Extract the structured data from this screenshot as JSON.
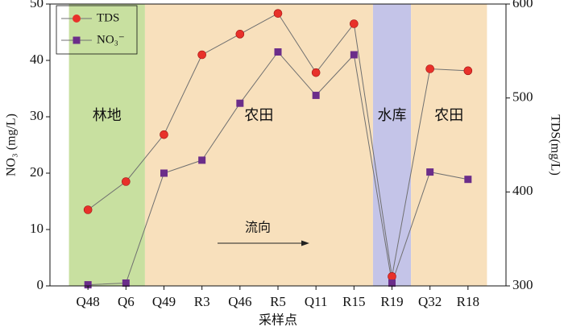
{
  "chart_data": {
    "type": "line",
    "x_label": "采样点",
    "y_label": "NO₃ (mg/L)",
    "y2_label": "TDS(mg/L)",
    "annotation": "流向",
    "categories": [
      "Q48",
      "Q6",
      "Q49",
      "R3",
      "Q46",
      "R5",
      "Q11",
      "R15",
      "R19",
      "Q32",
      "R18"
    ],
    "series": [
      {
        "name": "TDS",
        "color": "#e8312a",
        "marker": "circle",
        "axis": "y2",
        "values": [
          381,
          411,
          461,
          546,
          568,
          590,
          527,
          579,
          310,
          531,
          529
        ]
      },
      {
        "name": "NO₃⁻",
        "color": "#6b2d8a",
        "marker": "square",
        "values": [
          0.2,
          0.5,
          20,
          22.3,
          32.4,
          41.5,
          33.8,
          41,
          0.5,
          20.2,
          18.9
        ]
      }
    ],
    "regions": [
      {
        "label": "林地",
        "color": "#c8e0a0",
        "first": "Q48",
        "last": "Q6"
      },
      {
        "label": "农田",
        "color": "#f8e0bc",
        "first": "Q49",
        "last": "R15"
      },
      {
        "label": "水库",
        "color": "#c4c4e8",
        "first": "R19",
        "last": "R19"
      },
      {
        "label": "农田",
        "color": "#f8e0bc",
        "first": "Q32",
        "last": "R18"
      }
    ],
    "line_color": "#707070",
    "ylim": [
      0,
      50
    ],
    "yticks": [
      0,
      10,
      20,
      30,
      40,
      50
    ],
    "y2lim": [
      300,
      600
    ],
    "y2ticks": [
      300,
      400,
      500,
      600
    ],
    "legend": "upper left"
  }
}
